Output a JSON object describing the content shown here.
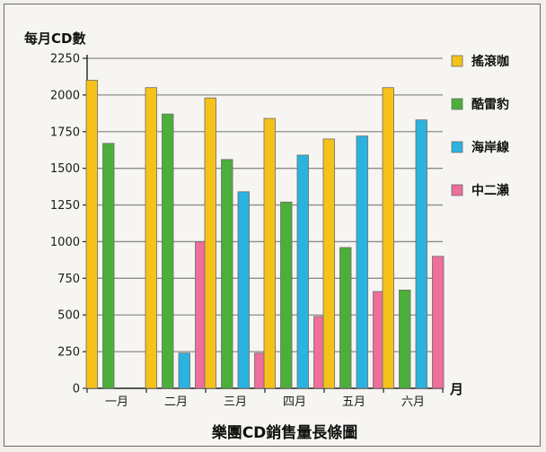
{
  "chart_data": {
    "type": "bar",
    "title": "樂團CD銷售量長條圖",
    "ylabel": "每月CD數",
    "xlabel": "月",
    "categories": [
      "一月",
      "二月",
      "三月",
      "四月",
      "五月",
      "六月"
    ],
    "ylim": [
      0,
      2250
    ],
    "yticks": [
      0,
      250,
      500,
      750,
      1000,
      1250,
      1500,
      1750,
      2000,
      2250
    ],
    "grid": true,
    "legend_position": "right",
    "series": [
      {
        "name": "搖滾咖",
        "color": "#f5c21a",
        "values": [
          2100,
          2050,
          1980,
          1840,
          1700,
          2050
        ]
      },
      {
        "name": "酷雷豹",
        "color": "#4caf3a",
        "values": [
          1670,
          1870,
          1560,
          1270,
          960,
          670
        ]
      },
      {
        "name": "海岸線",
        "color": "#2bb3e0",
        "values": [
          0,
          240,
          1340,
          1590,
          1720,
          1830
        ]
      },
      {
        "name": "中二瀨",
        "color": "#ee6e9c",
        "values": [
          0,
          1000,
          240,
          490,
          660,
          900
        ]
      }
    ]
  }
}
